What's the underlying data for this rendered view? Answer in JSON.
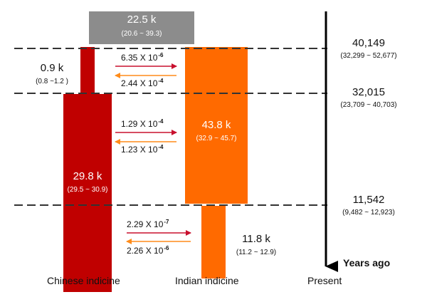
{
  "ancestor": {
    "ne": "22.5 k",
    "ci": "(20.6 ~ 39.3)"
  },
  "chinese": {
    "early": {
      "ne": "0.9 k",
      "ci": "(0.8 ~1.2 )"
    },
    "late": {
      "ne": "29.8 k",
      "ci": "(29.5 ~ 30.9)"
    },
    "label": "Chinese indicine"
  },
  "indian": {
    "early": {
      "ne": "43.8 k",
      "ci": "(32.9 ~ 45.7)"
    },
    "late": {
      "ne": "11.8 k",
      "ci": "(11.2 ~ 12.9)"
    },
    "label": "Indian indicine"
  },
  "migration": [
    {
      "base": "6.35 X 10",
      "exp": "-6",
      "direction": "chinese-to-indian"
    },
    {
      "base": "2.44 X 10",
      "exp": "-4",
      "direction": "indian-to-chinese"
    },
    {
      "base": "1.29 X 10",
      "exp": "-4",
      "direction": "chinese-to-indian"
    },
    {
      "base": "1.23 X 10",
      "exp": "-4",
      "direction": "indian-to-chinese"
    },
    {
      "base": "2.29 X 10",
      "exp": "-7",
      "direction": "chinese-to-indian"
    },
    {
      "base": "2.26 X 10",
      "exp": "-6",
      "direction": "indian-to-chinese"
    }
  ],
  "times": [
    {
      "year": "40,149",
      "ci": "(32,299 ~ 52,677)"
    },
    {
      "year": "32,015",
      "ci": "(23,709 ~ 40,703)"
    },
    {
      "year": "11,542",
      "ci": "(9,482 ~ 12,923)"
    }
  ],
  "axis": {
    "years_ago": "Years ago",
    "present": "Present"
  },
  "colors": {
    "chinese": "#c00000",
    "indian": "#ff6a00",
    "ancestor": "#8c8c8c",
    "arrow_to_indian": "#c8102e",
    "arrow_to_chinese": "#ff8c1a"
  }
}
